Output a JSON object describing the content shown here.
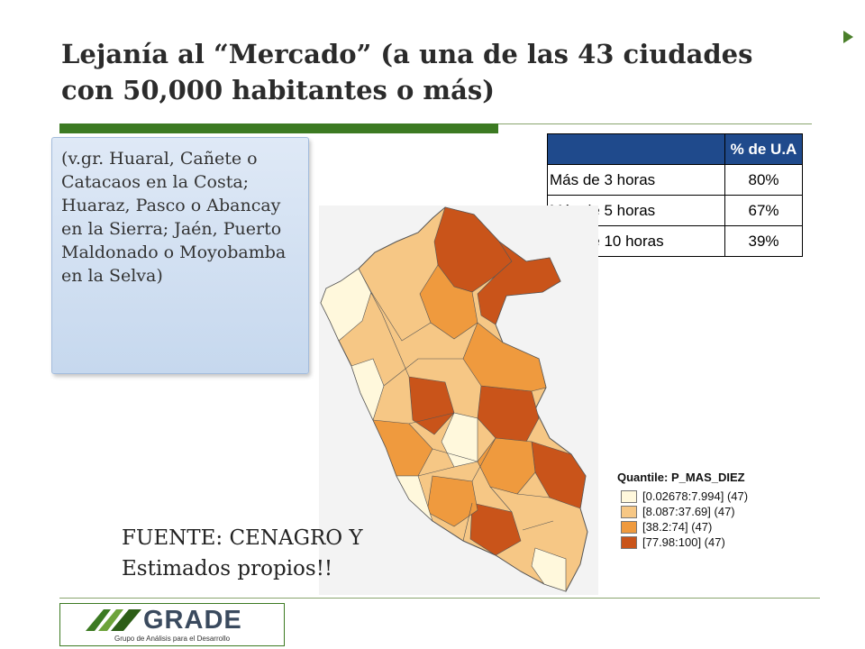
{
  "title": {
    "line1": "Lejanía al “Mercado”  (a una de las 43 ciudades",
    "line2": "con 50,000 habitantes o más)"
  },
  "note": "(v.gr. Huaral, Cañete o Catacaos en la Costa; Huaraz, Pasco o Abancay en la Sierra;  Jaén, Puerto Maldonado o Moyobamba en la Selva)",
  "table": {
    "header": "% de U.A",
    "rows": [
      {
        "label": "Más de 3 horas",
        "value": "80%"
      },
      {
        "label": "Más de 5 horas",
        "value": "67%"
      },
      {
        "label": "Más de 10 horas",
        "value": "39%"
      }
    ]
  },
  "legend": {
    "title": "Quantile: P_MAS_DIEZ",
    "items": [
      {
        "label": "[0.02678:7.994] (47)",
        "color": "#fff8dc"
      },
      {
        "label": "[8.087:37.69] (47)",
        "color": "#f6c785"
      },
      {
        "label": "[38.2:74] (47)",
        "color": "#ef9a3e"
      },
      {
        "label": "[77.98:100] (47)",
        "color": "#c9541a"
      }
    ]
  },
  "source": {
    "line1": "FUENTE: CENAGRO Y",
    "line2": "Estimados propios!!"
  },
  "logo": {
    "name": "GRADE",
    "subtitle": "Grupo de Análisis para el Desarrollo"
  },
  "colors": {
    "accent_green": "#3c7a22",
    "table_header": "#1f4a8c"
  }
}
